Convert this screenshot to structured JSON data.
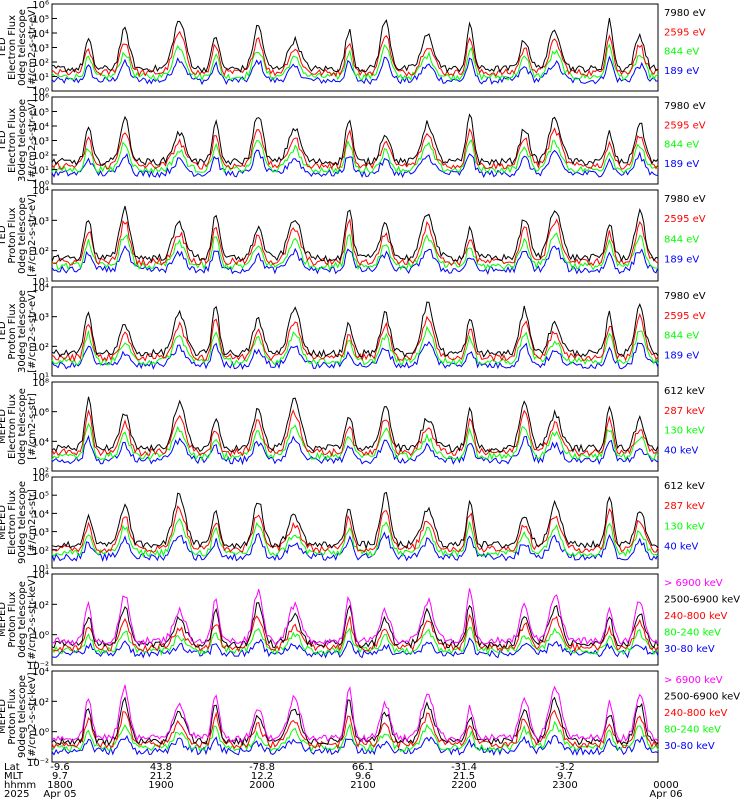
{
  "chart_data": {
    "type": "line",
    "x_axis": {
      "ticks": [
        {
          "lat": "-9.6",
          "mlt": "9.7",
          "hhmm": "1800",
          "date": "Apr 05"
        },
        {
          "lat": "43.8",
          "mlt": "21.2",
          "hhmm": "1900",
          "date": ""
        },
        {
          "lat": "-78.8",
          "mlt": "12.2",
          "hhmm": "2000",
          "date": ""
        },
        {
          "lat": "66.1",
          "mlt": "9.6",
          "hhmm": "2100",
          "date": ""
        },
        {
          "lat": "-31.4",
          "mlt": "21.5",
          "hhmm": "2200",
          "date": ""
        },
        {
          "lat": "-3.2",
          "mlt": "9.7",
          "hhmm": "2300",
          "date": ""
        },
        {
          "lat": "",
          "mlt": "",
          "hhmm": "0000",
          "date": "Apr 06"
        }
      ],
      "row_labels": [
        "Lat",
        "MLT",
        "hhmm",
        "2025"
      ]
    },
    "colors": {
      "black": "#000000",
      "red": "#ff0000",
      "green": "#00ff00",
      "blue": "#0000ff",
      "magenta": "#ff00ff"
    },
    "panels": [
      {
        "ylabel_lines": [
          "TED",
          "Electron Flux",
          "0deg telescope",
          "[#/cm2-s-str-eV]"
        ],
        "yticks": [
          "10⁰",
          "10¹",
          "10²",
          "10³",
          "10⁴",
          "10⁵",
          "10⁶"
        ],
        "log_range": [
          0,
          6
        ],
        "legend": [
          {
            "text": "7980 eV",
            "color": "#000000"
          },
          {
            "text": "2595 eV",
            "color": "#ff0000"
          },
          {
            "text": "844 eV",
            "color": "#00ff00"
          },
          {
            "text": "189 eV",
            "color": "#0000ff"
          }
        ]
      },
      {
        "ylabel_lines": [
          "TED",
          "Electron Flux",
          "30deg telescope",
          "[#/cm2-s-str-eV]"
        ],
        "yticks": [
          "10⁰",
          "10¹",
          "10²",
          "10³",
          "10⁴",
          "10⁵",
          "10⁶"
        ],
        "log_range": [
          0,
          6
        ],
        "legend": [
          {
            "text": "7980 eV",
            "color": "#000000"
          },
          {
            "text": "2595 eV",
            "color": "#ff0000"
          },
          {
            "text": "844 eV",
            "color": "#00ff00"
          },
          {
            "text": "189 eV",
            "color": "#0000ff"
          }
        ]
      },
      {
        "ylabel_lines": [
          "TED",
          "Proton Flux",
          "0deg telescope",
          "[#/cm2-s-str-eV]"
        ],
        "yticks": [
          "10¹",
          "10²",
          "10³",
          "10⁴"
        ],
        "log_range": [
          0.5,
          4.5
        ],
        "legend": [
          {
            "text": "7980 eV",
            "color": "#000000"
          },
          {
            "text": "2595 eV",
            "color": "#ff0000"
          },
          {
            "text": "844 eV",
            "color": "#00ff00"
          },
          {
            "text": "189 eV",
            "color": "#0000ff"
          }
        ]
      },
      {
        "ylabel_lines": [
          "TED",
          "Proton Flux",
          "30deg telescope",
          "[#/cm2-s-str-eV]"
        ],
        "yticks": [
          "10¹",
          "10²",
          "10³",
          "10⁴"
        ],
        "log_range": [
          0.5,
          4.5
        ],
        "legend": [
          {
            "text": "7980 eV",
            "color": "#000000"
          },
          {
            "text": "2595 eV",
            "color": "#ff0000"
          },
          {
            "text": "844 eV",
            "color": "#00ff00"
          },
          {
            "text": "189 eV",
            "color": "#0000ff"
          }
        ]
      },
      {
        "ylabel_lines": [
          "MEPED",
          "Electron Flux",
          "0deg telescope",
          "[#/cm2-s-str]"
        ],
        "yticks": [
          "10²",
          "10⁴",
          "10⁶",
          "10⁸"
        ],
        "log_range": [
          2,
          8
        ],
        "legend": [
          {
            "text": "612 keV",
            "color": "#000000"
          },
          {
            "text": "287 keV",
            "color": "#ff0000"
          },
          {
            "text": "130 keV",
            "color": "#00ff00"
          },
          {
            "text": "40 keV",
            "color": "#0000ff"
          }
        ]
      },
      {
        "ylabel_lines": [
          "MEPED",
          "Electron Flux",
          "90deg telescope",
          "[#/cm2-s-str]"
        ],
        "yticks": [
          "10¹",
          "10²",
          "10³",
          "10⁴",
          "10⁵",
          "10⁶"
        ],
        "log_range": [
          1,
          6
        ],
        "legend": [
          {
            "text": "612 keV",
            "color": "#000000"
          },
          {
            "text": "287 keV",
            "color": "#ff0000"
          },
          {
            "text": "130 keV",
            "color": "#00ff00"
          },
          {
            "text": "40 keV",
            "color": "#0000ff"
          }
        ]
      },
      {
        "ylabel_lines": [
          "MEPED",
          "Proton Flux",
          "0deg telescope",
          "[#/cm2-s-str-keV]"
        ],
        "yticks": [
          "10⁻²",
          "10⁰",
          "10²",
          "10⁴"
        ],
        "log_range": [
          -2.5,
          5
        ],
        "legend": [
          {
            "text": "> 6900 keV",
            "color": "#ff00ff"
          },
          {
            "text": "2500-6900 keV",
            "color": "#000000"
          },
          {
            "text": "240-800 keV",
            "color": "#ff0000"
          },
          {
            "text": "80-240 keV",
            "color": "#00ff00"
          },
          {
            "text": "30-80 keV",
            "color": "#0000ff"
          }
        ]
      },
      {
        "ylabel_lines": [
          "MEPED",
          "Proton Flux",
          "90deg telescope",
          "[#/cm2-s-str-keV]"
        ],
        "yticks": [
          "10⁻²",
          "10⁰",
          "10²",
          "10⁴"
        ],
        "log_range": [
          -2.5,
          5
        ],
        "legend": [
          {
            "text": "> 6900 keV",
            "color": "#ff00ff"
          },
          {
            "text": "2500-6900 keV",
            "color": "#000000"
          },
          {
            "text": "240-800 keV",
            "color": "#ff0000"
          },
          {
            "text": "80-240 keV",
            "color": "#00ff00"
          },
          {
            "text": "30-80 keV",
            "color": "#0000ff"
          }
        ]
      }
    ]
  }
}
